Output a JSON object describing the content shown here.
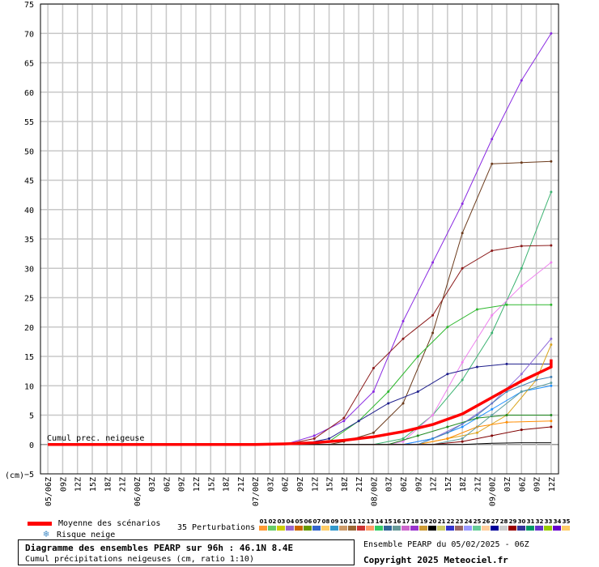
{
  "chart_data": {
    "type": "line",
    "title": "Diagramme des ensembles PEARP sur 96h : 46.1N 8.4E",
    "subtitle": "Cumul précipitations neigeuses (cm, ratio 1:10)",
    "inner_label": "Cumul prec. neigeuse",
    "ylabel": "(cm)",
    "ylim": [
      -5,
      75
    ],
    "yticks": [
      75,
      70,
      65,
      60,
      55,
      50,
      45,
      40,
      35,
      30,
      25,
      20,
      15,
      10,
      5,
      0,
      -5
    ],
    "ytick_labels": [
      "75",
      "70",
      "65",
      "60",
      "55",
      "50",
      "45",
      "40",
      "35",
      "30",
      "25",
      "20",
      "15",
      "10",
      "5",
      "0",
      "(cm)−5"
    ],
    "x_tick_labels": [
      "05/06Z",
      "09Z",
      "12Z",
      "15Z",
      "18Z",
      "21Z",
      "06/00Z",
      "03Z",
      "06Z",
      "09Z",
      "12Z",
      "15Z",
      "18Z",
      "21Z",
      "07/00Z",
      "03Z",
      "06Z",
      "09Z",
      "12Z",
      "15Z",
      "18Z",
      "21Z",
      "08/00Z",
      "03Z",
      "06Z",
      "09Z",
      "12Z",
      "15Z",
      "18Z",
      "21Z",
      "09/00Z",
      "03Z",
      "06Z",
      "09Z",
      "12Z"
    ],
    "x_hours": [
      0,
      3,
      6,
      9,
      12,
      15,
      18,
      21,
      24,
      27,
      30,
      33,
      36,
      39,
      42,
      45,
      48,
      51,
      54,
      57,
      60,
      63,
      66,
      69,
      72,
      75,
      78,
      81,
      84,
      87,
      90,
      93,
      96,
      99,
      102
    ],
    "grid": true,
    "mean": {
      "name": "Moyenne des scénarios",
      "color": "#ff0000",
      "points": [
        [
          0,
          0
        ],
        [
          42,
          0
        ],
        [
          48,
          0.1
        ],
        [
          54,
          0.3
        ],
        [
          60,
          0.7
        ],
        [
          66,
          1.3
        ],
        [
          72,
          2.2
        ],
        [
          78,
          3.4
        ],
        [
          84,
          5.2
        ],
        [
          90,
          8
        ],
        [
          96,
          10.8
        ],
        [
          102,
          13.2
        ],
        [
          105,
          14.5
        ]
      ]
    },
    "series": [
      {
        "id": "01",
        "color": "#8a2be2",
        "points": [
          [
            0,
            0
          ],
          [
            48,
            0
          ],
          [
            54,
            1.5
          ],
          [
            60,
            4
          ],
          [
            66,
            9
          ],
          [
            72,
            21
          ],
          [
            78,
            31
          ],
          [
            84,
            41
          ],
          [
            90,
            52
          ],
          [
            96,
            62
          ],
          [
            102,
            70
          ]
        ]
      },
      {
        "id": "02",
        "color": "#6b3a1b",
        "points": [
          [
            0,
            0
          ],
          [
            57,
            0
          ],
          [
            60,
            0.5
          ],
          [
            66,
            2
          ],
          [
            72,
            7
          ],
          [
            78,
            19
          ],
          [
            84,
            36
          ],
          [
            90,
            47.8
          ],
          [
            96,
            48
          ],
          [
            102,
            48.2
          ]
        ]
      },
      {
        "id": "03",
        "color": "#3cb371",
        "points": [
          [
            0,
            0
          ],
          [
            66,
            0
          ],
          [
            72,
            1
          ],
          [
            78,
            5
          ],
          [
            84,
            11
          ],
          [
            90,
            19
          ],
          [
            96,
            30
          ],
          [
            102,
            43
          ]
        ]
      },
      {
        "id": "04",
        "color": "#8b1a1a",
        "points": [
          [
            0,
            0
          ],
          [
            48,
            0
          ],
          [
            54,
            1
          ],
          [
            60,
            4.5
          ],
          [
            66,
            13
          ],
          [
            72,
            18
          ],
          [
            78,
            22
          ],
          [
            84,
            30
          ],
          [
            90,
            33
          ],
          [
            96,
            33.8
          ],
          [
            102,
            33.9
          ]
        ]
      },
      {
        "id": "05",
        "color": "#ee82ee",
        "points": [
          [
            0,
            0
          ],
          [
            69,
            0
          ],
          [
            72,
            0.5
          ],
          [
            78,
            5
          ],
          [
            84,
            14
          ],
          [
            90,
            22
          ],
          [
            96,
            27
          ],
          [
            102,
            31
          ]
        ]
      },
      {
        "id": "06",
        "color": "#2eb82e",
        "points": [
          [
            0,
            0
          ],
          [
            51,
            0
          ],
          [
            57,
            0.5
          ],
          [
            63,
            4
          ],
          [
            69,
            9
          ],
          [
            75,
            15
          ],
          [
            81,
            20
          ],
          [
            87,
            23
          ],
          [
            93,
            23.8
          ],
          [
            102,
            23.8
          ]
        ]
      },
      {
        "id": "07",
        "color": "#1e1e8c",
        "points": [
          [
            0,
            0
          ],
          [
            51,
            0
          ],
          [
            57,
            1
          ],
          [
            63,
            4
          ],
          [
            69,
            7
          ],
          [
            75,
            9
          ],
          [
            81,
            12
          ],
          [
            87,
            13.2
          ],
          [
            93,
            13.7
          ],
          [
            102,
            13.7
          ]
        ]
      },
      {
        "id": "08",
        "color": "#9370db",
        "points": [
          [
            0,
            0
          ],
          [
            72,
            0
          ],
          [
            78,
            1
          ],
          [
            84,
            3.5
          ],
          [
            90,
            7
          ],
          [
            96,
            12
          ],
          [
            102,
            18
          ]
        ]
      },
      {
        "id": "09",
        "color": "#1e90ff",
        "points": [
          [
            0,
            0
          ],
          [
            72,
            0
          ],
          [
            78,
            1
          ],
          [
            84,
            3
          ],
          [
            90,
            6
          ],
          [
            96,
            9
          ],
          [
            102,
            10
          ]
        ]
      },
      {
        "id": "10",
        "color": "#daa520",
        "points": [
          [
            0,
            0
          ],
          [
            75,
            0
          ],
          [
            81,
            1
          ],
          [
            87,
            2
          ],
          [
            93,
            5
          ],
          [
            99,
            11
          ],
          [
            102,
            17
          ]
        ]
      },
      {
        "id": "11",
        "color": "#228b22",
        "points": [
          [
            0,
            0
          ],
          [
            69,
            0
          ],
          [
            75,
            1.5
          ],
          [
            81,
            3
          ],
          [
            87,
            4.5
          ],
          [
            93,
            5
          ],
          [
            102,
            5
          ]
        ]
      },
      {
        "id": "12",
        "color": "#ff8c00",
        "points": [
          [
            0,
            0
          ],
          [
            75,
            0
          ],
          [
            81,
            1
          ],
          [
            87,
            3
          ],
          [
            93,
            3.8
          ],
          [
            102,
            4
          ]
        ]
      },
      {
        "id": "13",
        "color": "#4682b4",
        "points": [
          [
            0,
            0
          ],
          [
            75,
            0
          ],
          [
            81,
            2
          ],
          [
            87,
            5
          ],
          [
            93,
            9
          ],
          [
            99,
            11
          ],
          [
            102,
            11.5
          ]
        ]
      },
      {
        "id": "14",
        "color": "#5f9ea0",
        "points": [
          [
            0,
            0
          ],
          [
            78,
            0
          ],
          [
            84,
            1
          ],
          [
            90,
            5
          ],
          [
            96,
            9
          ],
          [
            102,
            10.5
          ]
        ]
      },
      {
        "id": "15",
        "color": "#800000",
        "points": [
          [
            0,
            0
          ],
          [
            78,
            0
          ],
          [
            84,
            0.5
          ],
          [
            90,
            1.5
          ],
          [
            96,
            2.5
          ],
          [
            102,
            3
          ]
        ]
      },
      {
        "id": "16",
        "color": "#000000",
        "points": [
          [
            0,
            0
          ],
          [
            84,
            0
          ],
          [
            90,
            0.2
          ],
          [
            96,
            0.3
          ],
          [
            102,
            0.3
          ]
        ]
      }
    ]
  },
  "legend": {
    "mean_label": "Moyenne des scénarios",
    "snow_label": "Risque neige",
    "perturbations_label": "35 Perturbations",
    "perturbations": [
      {
        "id": "01",
        "color": "#ff9933"
      },
      {
        "id": "02",
        "color": "#66cc66"
      },
      {
        "id": "03",
        "color": "#cccc00"
      },
      {
        "id": "04",
        "color": "#9966cc"
      },
      {
        "id": "05",
        "color": "#cc6600"
      },
      {
        "id": "06",
        "color": "#669900"
      },
      {
        "id": "07",
        "color": "#3366cc"
      },
      {
        "id": "08",
        "color": "#ffcc66"
      },
      {
        "id": "09",
        "color": "#3399cc"
      },
      {
        "id": "10",
        "color": "#cc9966"
      },
      {
        "id": "11",
        "color": "#996633"
      },
      {
        "id": "12",
        "color": "#cc3333"
      },
      {
        "id": "13",
        "color": "#ff9966"
      },
      {
        "id": "14",
        "color": "#33cc66"
      },
      {
        "id": "15",
        "color": "#336699"
      },
      {
        "id": "16",
        "color": "#669999"
      },
      {
        "id": "17",
        "color": "#cc66cc"
      },
      {
        "id": "18",
        "color": "#9933cc"
      },
      {
        "id": "19",
        "color": "#cc9933"
      },
      {
        "id": "20",
        "color": "#000000"
      },
      {
        "id": "21",
        "color": "#cccc66"
      },
      {
        "id": "22",
        "color": "#3333cc"
      },
      {
        "id": "23",
        "color": "#996666"
      },
      {
        "id": "24",
        "color": "#9999ff"
      },
      {
        "id": "25",
        "color": "#66cc99"
      },
      {
        "id": "26",
        "color": "#ffcc99"
      },
      {
        "id": "27",
        "color": "#000099"
      },
      {
        "id": "28",
        "color": "#cccccc"
      },
      {
        "id": "29",
        "color": "#990000"
      },
      {
        "id": "30",
        "color": "#333399"
      },
      {
        "id": "31",
        "color": "#009966"
      },
      {
        "id": "32",
        "color": "#6633cc"
      },
      {
        "id": "33",
        "color": "#99cc00"
      },
      {
        "id": "34",
        "color": "#6600cc"
      },
      {
        "id": "35",
        "color": "#ffcc66"
      }
    ]
  },
  "info": {
    "title": "Diagramme des ensembles PEARP sur 96h : 46.1N 8.4E",
    "subtitle": "Cumul précipitations neigeuses (cm, ratio 1:10)",
    "ensemble": "Ensemble PEARP du 05/02/2025 - 06Z",
    "copyright": "Copyright 2025 Meteociel.fr"
  }
}
